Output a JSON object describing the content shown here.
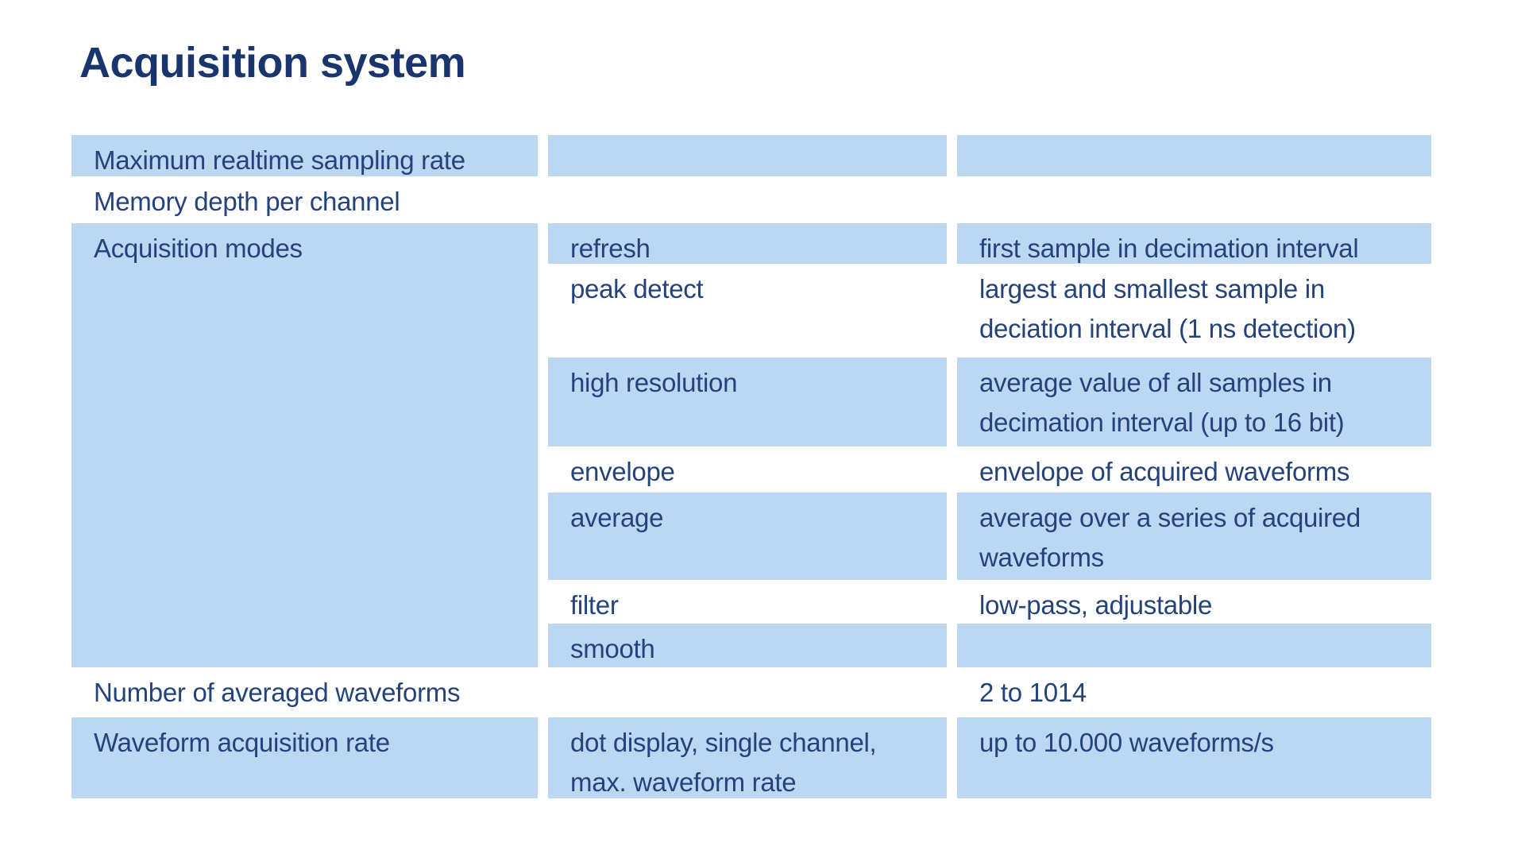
{
  "page": {
    "title": "Acquisition system"
  },
  "colors": {
    "row_blue": "#bbd7f1",
    "text_navy": "#24427c",
    "title_navy": "#1a356e",
    "page_background": "#ffffff"
  },
  "table": {
    "sections": [
      {
        "label": "Maximum realtime sampling rate",
        "condition": "",
        "value": "",
        "shaded": true
      },
      {
        "label": "Memory depth per channel",
        "condition": "",
        "value": "",
        "shaded": false
      },
      {
        "label": "Acquisition modes",
        "modes": [
          {
            "name": "refresh",
            "description": "first sample in decimation interval",
            "shaded": true
          },
          {
            "name": "peak detect",
            "description": "largest and smallest sample in\ndeciation interval (1 ns detection)",
            "shaded": false
          },
          {
            "name": "high resolution",
            "description": "average value of all samples in\ndecimation interval (up to 16 bit)",
            "shaded": true
          },
          {
            "name": "envelope",
            "description": "envelope of acquired waveforms",
            "shaded": false
          },
          {
            "name": "average",
            "description": "average over a series of acquired\nwaveforms",
            "shaded": true
          },
          {
            "name": "filter",
            "description": "low-pass, adjustable",
            "shaded": false
          },
          {
            "name": "smooth",
            "description": "",
            "shaded": true
          }
        ]
      },
      {
        "label": "Number of averaged waveforms",
        "condition": "",
        "value": "2 to 1014",
        "shaded": false
      },
      {
        "label": "Waveform acquisition rate",
        "condition": "dot display, single channel,\nmax. waveform rate",
        "value": "up to 10.000 waveforms/s",
        "shaded": true
      }
    ]
  }
}
